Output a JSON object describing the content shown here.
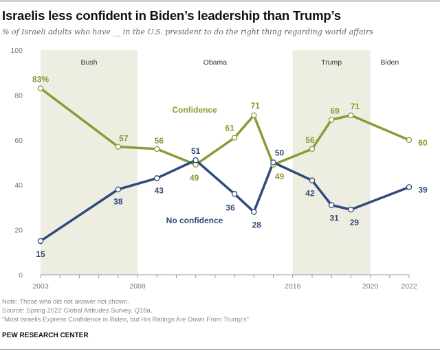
{
  "title": "Israelis less confident in Biden’s leadership than Trump’s",
  "subtitle": "% of Israeli adults who have __ in the U.S. president to do the right thing regarding world affairs",
  "notes": {
    "note": "Note: Those who did not answer not shown.",
    "source": "Source: Spring 2022 Global Attitudes Survey. Q18a.",
    "report": "“Most Israelis Express Confidence in Biden, but His Ratings Are Down From Trump’s”",
    "brand": "PEW RESEARCH CENTER"
  },
  "chart_data": {
    "type": "line",
    "title": "Israelis less confident in Biden’s leadership than Trump’s",
    "xlabel": "",
    "ylabel": "",
    "ylim": [
      0,
      100
    ],
    "xlim": [
      2003,
      2022
    ],
    "yticks": [
      0,
      20,
      40,
      60,
      80,
      100
    ],
    "xtick_labels": [
      "2003",
      "2008",
      "2016",
      "2020",
      "2022"
    ],
    "grid": false,
    "presidencies": [
      {
        "name": "Bush",
        "start": 2003,
        "end": 2008,
        "shaded": true
      },
      {
        "name": "Obama",
        "start": 2008,
        "end": 2016,
        "shaded": false
      },
      {
        "name": "Trump",
        "start": 2016,
        "end": 2020,
        "shaded": true
      },
      {
        "name": "Biden",
        "start": 2020,
        "end": 2022,
        "shaded": false
      }
    ],
    "x": [
      2003,
      2007,
      2009,
      2011,
      2013,
      2014,
      2015,
      2017,
      2018,
      2019,
      2022
    ],
    "series": [
      {
        "name": "Confidence",
        "color": "#8a9a35",
        "values": [
          83,
          57,
          56,
          49,
          61,
          71,
          49,
          56,
          69,
          71,
          60
        ],
        "first_label_suffix": "%"
      },
      {
        "name": "No confidence",
        "color": "#2f4a7c",
        "values": [
          15,
          38,
          43,
          51,
          36,
          28,
          50,
          42,
          31,
          29,
          39
        ]
      }
    ],
    "colors": {
      "shade": "#eeede2",
      "axis": "#999999"
    }
  }
}
